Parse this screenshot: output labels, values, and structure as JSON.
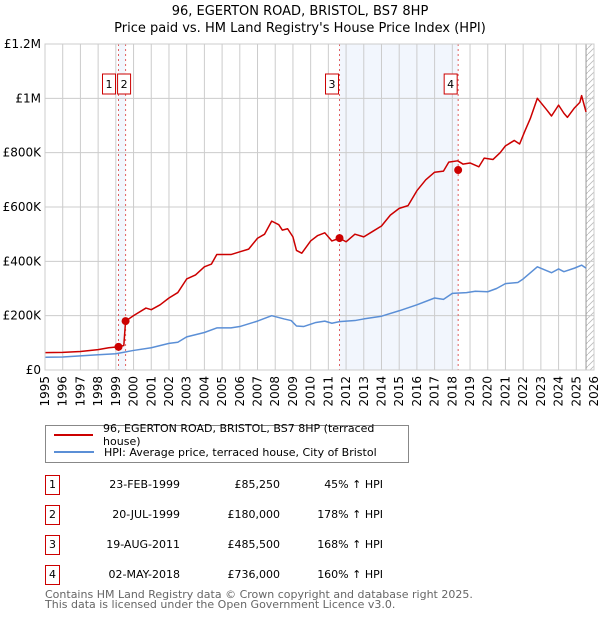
{
  "title_line1": "96, EGERTON ROAD, BRISTOL, BS7 8HP",
  "title_line2": "Price paid vs. HM Land Registry's House Price Index (HPI)",
  "chart_data": {
    "type": "line",
    "title": "96, EGERTON ROAD, BRISTOL, BS7 8HP — Price paid vs. HM Land Registry's House Price Index (HPI)",
    "xlim": [
      1995,
      2026
    ],
    "ylim": [
      0,
      1200000
    ],
    "x_ticks": [
      "1995",
      "1996",
      "1997",
      "1998",
      "1999",
      "2000",
      "2001",
      "2002",
      "2003",
      "2004",
      "2005",
      "2006",
      "2007",
      "2008",
      "2009",
      "2010",
      "2011",
      "2012",
      "2013",
      "2014",
      "2015",
      "2016",
      "2017",
      "2018",
      "2019",
      "2020",
      "2021",
      "2022",
      "2023",
      "2024",
      "2025",
      "2026"
    ],
    "y_ticks": [
      {
        "v": 0,
        "label": "£0"
      },
      {
        "v": 200000,
        "label": "£200K"
      },
      {
        "v": 400000,
        "label": "£400K"
      },
      {
        "v": 600000,
        "label": "£600K"
      },
      {
        "v": 800000,
        "label": "£800K"
      },
      {
        "v": 1000000,
        "label": "£1M"
      },
      {
        "v": 1200000,
        "label": "£1.2M"
      }
    ],
    "grid": true,
    "forecast_hatch_from": 2025.55,
    "shaded_ranges": [
      [
        1999.15,
        1999.55
      ],
      [
        2011.63,
        2018.33
      ]
    ],
    "series": [
      {
        "name": "96, EGERTON ROAD, BRISTOL, BS7 8HP (terraced house)",
        "color": "#cc0000",
        "points": [
          [
            1995,
            64000
          ],
          [
            1996,
            65000
          ],
          [
            1997,
            68000
          ],
          [
            1998,
            75000
          ],
          [
            1998.6,
            82000
          ],
          [
            1999.1,
            85000
          ],
          [
            1999.45,
            90000
          ],
          [
            1999.55,
            180000
          ],
          [
            2000,
            200000
          ],
          [
            2000.7,
            228000
          ],
          [
            2001,
            222000
          ],
          [
            2001.5,
            240000
          ],
          [
            2002,
            265000
          ],
          [
            2002.5,
            285000
          ],
          [
            2003,
            335000
          ],
          [
            2003.5,
            350000
          ],
          [
            2004,
            380000
          ],
          [
            2004.4,
            390000
          ],
          [
            2004.7,
            425000
          ],
          [
            2005.5,
            425000
          ],
          [
            2006,
            435000
          ],
          [
            2006.5,
            445000
          ],
          [
            2007,
            485000
          ],
          [
            2007.4,
            500000
          ],
          [
            2007.8,
            548000
          ],
          [
            2008.2,
            535000
          ],
          [
            2008.4,
            515000
          ],
          [
            2008.7,
            520000
          ],
          [
            2009,
            490000
          ],
          [
            2009.2,
            440000
          ],
          [
            2009.5,
            430000
          ],
          [
            2010,
            475000
          ],
          [
            2010.4,
            495000
          ],
          [
            2010.8,
            505000
          ],
          [
            2011.2,
            475000
          ],
          [
            2011.63,
            485000
          ],
          [
            2012,
            472000
          ],
          [
            2012.5,
            500000
          ],
          [
            2013,
            490000
          ],
          [
            2013.5,
            510000
          ],
          [
            2014,
            530000
          ],
          [
            2014.5,
            570000
          ],
          [
            2015,
            595000
          ],
          [
            2015.5,
            605000
          ],
          [
            2016,
            660000
          ],
          [
            2016.5,
            700000
          ],
          [
            2017,
            728000
          ],
          [
            2017.5,
            732000
          ],
          [
            2017.8,
            765000
          ],
          [
            2018.3,
            770000
          ],
          [
            2018.6,
            758000
          ],
          [
            2019,
            762000
          ],
          [
            2019.5,
            748000
          ],
          [
            2019.8,
            780000
          ],
          [
            2020.3,
            775000
          ],
          [
            2020.7,
            800000
          ],
          [
            2021,
            825000
          ],
          [
            2021.5,
            845000
          ],
          [
            2021.8,
            832000
          ],
          [
            2022.1,
            880000
          ],
          [
            2022.4,
            925000
          ],
          [
            2022.8,
            1000000
          ],
          [
            2023.3,
            960000
          ],
          [
            2023.6,
            935000
          ],
          [
            2024,
            975000
          ],
          [
            2024.3,
            945000
          ],
          [
            2024.5,
            930000
          ],
          [
            2024.9,
            965000
          ],
          [
            2025.2,
            985000
          ],
          [
            2025.3,
            1010000
          ],
          [
            2025.55,
            950000
          ]
        ]
      },
      {
        "name": "HPI: Average price, terraced house, City of Bristol",
        "color": "#5b8fd6",
        "points": [
          [
            1995,
            47000
          ],
          [
            1996,
            48000
          ],
          [
            1997,
            52000
          ],
          [
            1998,
            56000
          ],
          [
            1999,
            60000
          ],
          [
            2000,
            72000
          ],
          [
            2001,
            82000
          ],
          [
            2002,
            98000
          ],
          [
            2002.5,
            102000
          ],
          [
            2003,
            122000
          ],
          [
            2004,
            138000
          ],
          [
            2004.7,
            155000
          ],
          [
            2005.5,
            155000
          ],
          [
            2006,
            160000
          ],
          [
            2007,
            180000
          ],
          [
            2007.8,
            200000
          ],
          [
            2008.5,
            188000
          ],
          [
            2008.9,
            182000
          ],
          [
            2009.2,
            162000
          ],
          [
            2009.6,
            160000
          ],
          [
            2010.3,
            175000
          ],
          [
            2010.8,
            180000
          ],
          [
            2011.2,
            172000
          ],
          [
            2011.63,
            178000
          ],
          [
            2012.5,
            182000
          ],
          [
            2013,
            188000
          ],
          [
            2014,
            198000
          ],
          [
            2015,
            218000
          ],
          [
            2016,
            240000
          ],
          [
            2017,
            265000
          ],
          [
            2017.5,
            260000
          ],
          [
            2018,
            282000
          ],
          [
            2018.8,
            285000
          ],
          [
            2019.3,
            290000
          ],
          [
            2020,
            288000
          ],
          [
            2020.5,
            300000
          ],
          [
            2021,
            318000
          ],
          [
            2021.7,
            322000
          ],
          [
            2022,
            335000
          ],
          [
            2022.8,
            380000
          ],
          [
            2023.6,
            358000
          ],
          [
            2024,
            372000
          ],
          [
            2024.3,
            362000
          ],
          [
            2024.9,
            375000
          ],
          [
            2025.3,
            386000
          ],
          [
            2025.55,
            375000
          ]
        ]
      }
    ],
    "sales": [
      {
        "n": "1",
        "x": 1999.15,
        "y": 85250
      },
      {
        "n": "2",
        "x": 1999.55,
        "y": 180000
      },
      {
        "n": "3",
        "x": 2011.63,
        "y": 485500
      },
      {
        "n": "4",
        "x": 2018.33,
        "y": 736000
      }
    ]
  },
  "legend": {
    "red_label": "96, EGERTON ROAD, BRISTOL, BS7 8HP (terraced house)",
    "blue_label": "HPI: Average price, terraced house, City of Bristol"
  },
  "table": [
    {
      "n": "1",
      "date": "23-FEB-1999",
      "price": "£85,250",
      "hpi": "45% ↑ HPI"
    },
    {
      "n": "2",
      "date": "20-JUL-1999",
      "price": "£180,000",
      "hpi": "178% ↑ HPI"
    },
    {
      "n": "3",
      "date": "19-AUG-2011",
      "price": "£485,500",
      "hpi": "168% ↑ HPI"
    },
    {
      "n": "4",
      "date": "02-MAY-2018",
      "price": "£736,000",
      "hpi": "160% ↑ HPI"
    }
  ],
  "footer_line1": "Contains HM Land Registry data © Crown copyright and database right 2025.",
  "footer_line2": "This data is licensed under the Open Government Licence v3.0."
}
